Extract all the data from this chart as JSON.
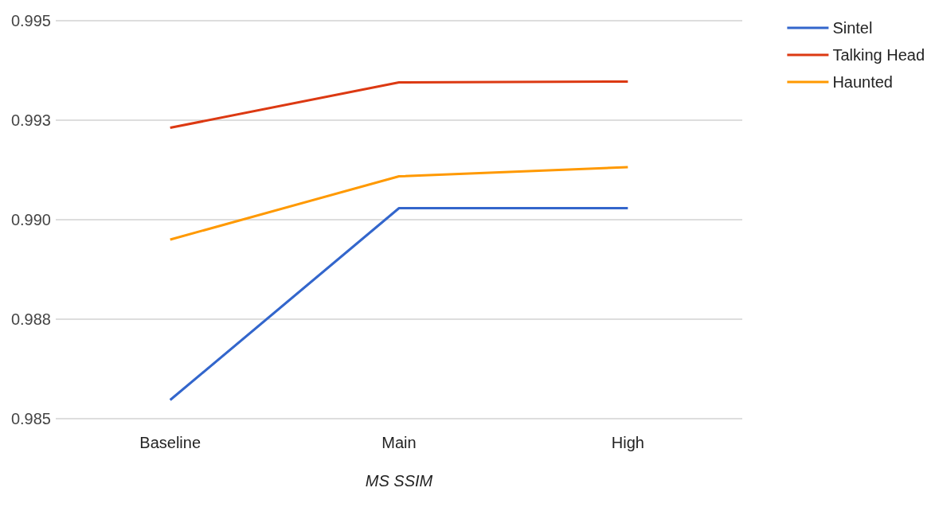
{
  "chart_data": {
    "type": "line",
    "xlabel": "MS SSIM",
    "categories": [
      "Baseline",
      "Main",
      "High"
    ],
    "series": [
      {
        "name": "Sintel",
        "color": "#3366cc",
        "values": [
          0.98547,
          0.99029,
          0.99029
        ]
      },
      {
        "name": "Talking Head",
        "color": "#dc3912",
        "values": [
          0.99231,
          0.99345,
          0.99347
        ]
      },
      {
        "name": "Haunted",
        "color": "#ff9900",
        "values": [
          0.9895,
          0.99109,
          0.99132
        ]
      }
    ],
    "ylim": [
      0.985,
      0.995
    ],
    "yticks": [
      {
        "value": 0.985,
        "label": "0.985"
      },
      {
        "value": 0.9875,
        "label": "0.988"
      },
      {
        "value": 0.99,
        "label": "0.990"
      },
      {
        "value": 0.9925,
        "label": "0.993"
      },
      {
        "value": 0.995,
        "label": "0.995"
      }
    ],
    "grid": "y",
    "legend": "top right",
    "marker": "none",
    "line_style": "solid"
  }
}
